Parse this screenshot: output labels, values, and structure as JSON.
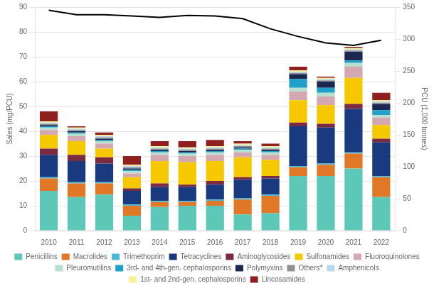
{
  "chart_data": {
    "type": "bar",
    "stacked": true,
    "grid": true,
    "legend": "bottom",
    "y_label": "Sales (mg/PCU)",
    "y2_label": "PCU (1,000 tonnes)",
    "categories": [
      2010,
      2011,
      2012,
      2013,
      2014,
      2015,
      2016,
      2017,
      2018,
      2019,
      2020,
      2021,
      2022
    ],
    "ylim": [
      0,
      90
    ],
    "yticks": [
      0,
      10,
      20,
      30,
      40,
      50,
      60,
      70,
      80,
      90
    ],
    "y2lim": [
      0,
      350
    ],
    "y2ticks": [
      0,
      50,
      100,
      150,
      200,
      250,
      300,
      350
    ],
    "series": [
      {
        "name": "Penicillins",
        "color": "#5ec8b8",
        "values": [
          16.0,
          13.5,
          14.5,
          6.0,
          9.5,
          10.0,
          10.0,
          6.5,
          7.0,
          22.0,
          22.0,
          25.0,
          13.5
        ]
      },
      {
        "name": "Macrolides",
        "color": "#e07828",
        "values": [
          5.0,
          5.5,
          4.5,
          4.0,
          2.0,
          1.5,
          2.0,
          6.0,
          7.0,
          3.5,
          4.5,
          6.0,
          8.0
        ]
      },
      {
        "name": "Trimethoprim",
        "color": "#4eb8d8",
        "values": [
          0.5,
          0.5,
          0.5,
          0.5,
          0.5,
          0.5,
          0.5,
          0.5,
          0.5,
          0.5,
          0.5,
          0.5,
          0.5
        ]
      },
      {
        "name": "Tetracyclines",
        "color": "#1a3a80",
        "values": [
          9.0,
          8.5,
          7.5,
          5.5,
          5.5,
          5.5,
          6.0,
          7.5,
          6.5,
          16.0,
          14.5,
          17.5,
          13.5
        ]
      },
      {
        "name": "Aminoglycosides",
        "color": "#7b2a40",
        "values": [
          2.5,
          2.5,
          2.5,
          1.0,
          1.5,
          1.0,
          1.5,
          1.0,
          1.0,
          1.5,
          1.5,
          2.0,
          1.5
        ]
      },
      {
        "name": "Sulfonamides",
        "color": "#f5c800",
        "values": [
          5.5,
          5.5,
          3.5,
          4.5,
          9.0,
          9.0,
          8.0,
          8.0,
          6.5,
          9.0,
          7.5,
          10.5,
          5.5
        ]
      },
      {
        "name": "Fluoroquinolones",
        "color": "#d4a8b0",
        "values": [
          2.0,
          2.0,
          2.0,
          1.5,
          2.5,
          2.5,
          2.5,
          2.0,
          2.0,
          3.5,
          3.5,
          4.5,
          3.0
        ]
      },
      {
        "name": "Pleuromutilins",
        "color": "#b8e0d0",
        "values": [
          1.0,
          1.0,
          1.0,
          1.0,
          1.0,
          1.0,
          1.0,
          1.0,
          1.0,
          1.5,
          1.5,
          1.5,
          1.0
        ]
      },
      {
        "name": "3rd- and 4th-gen. cephalosporins",
        "color": "#20a0c8",
        "values": [
          0.5,
          0.5,
          0.5,
          0.5,
          0.5,
          0.5,
          0.5,
          0.5,
          0.5,
          3.5,
          2.0,
          1.0,
          2.0
        ]
      },
      {
        "name": "Polymyxins",
        "color": "#1a2850",
        "values": [
          0.5,
          0.5,
          0.5,
          0.5,
          0.5,
          0.5,
          0.5,
          0.5,
          0.5,
          2.0,
          2.5,
          3.5,
          2.5
        ]
      },
      {
        "name": "Others*",
        "color": "#909090",
        "values": [
          0.5,
          0.5,
          0.5,
          0.5,
          0.5,
          0.5,
          0.5,
          0.5,
          0.5,
          0.5,
          0.5,
          0.5,
          0.5
        ]
      },
      {
        "name": "Amphenicols",
        "color": "#b8d8f0",
        "values": [
          0.5,
          0.5,
          0.5,
          0.5,
          0.5,
          0.5,
          0.5,
          0.5,
          0.5,
          0.5,
          0.5,
          0.5,
          0.5
        ]
      },
      {
        "name": "1st- and 2nd-gen. cephalosporins",
        "color": "#f8f098",
        "values": [
          0.5,
          0.5,
          0.5,
          0.5,
          0.5,
          0.5,
          0.5,
          0.5,
          0.5,
          0.5,
          0.5,
          0.5,
          0.5
        ]
      },
      {
        "name": "Lincosamides",
        "color": "#902020",
        "values": [
          4.0,
          0.5,
          1.0,
          3.5,
          2.0,
          2.5,
          2.5,
          1.0,
          1.0,
          1.5,
          0.5,
          0.5,
          3.0
        ]
      },
      {
        "type": "line",
        "axis": "y2",
        "color": "#000000",
        "values": [
          345,
          338,
          338,
          336,
          334,
          337,
          336,
          332,
          316,
          304,
          294,
          290,
          298
        ]
      }
    ]
  }
}
